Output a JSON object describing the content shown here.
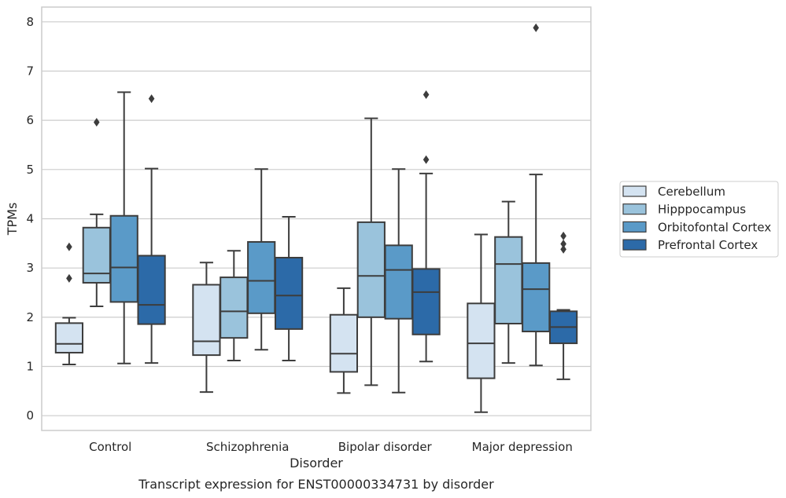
{
  "chart_data": {
    "type": "boxplot",
    "caption": "Transcript expression for ENST00000334731 by disorder",
    "xlabel": "Disorder",
    "ylabel": "TPMs",
    "ylim": [
      -0.3,
      8.3
    ],
    "yticks": [
      0,
      1,
      2,
      3,
      4,
      5,
      6,
      7,
      8
    ],
    "grid": true,
    "legend_position": "right",
    "categories": [
      "Control",
      "Schizophrenia",
      "Bipolar disorder",
      "Major depression"
    ],
    "series": [
      {
        "name": "Cerebellum",
        "color": "#d4e3f1",
        "boxes": [
          {
            "whislo": 1.04,
            "q1": 1.28,
            "med": 1.46,
            "q3": 1.88,
            "whishi": 1.99,
            "fliers": [
              2.79,
              3.43
            ]
          },
          {
            "whislo": 0.48,
            "q1": 1.23,
            "med": 1.51,
            "q3": 2.66,
            "whishi": 3.11,
            "fliers": []
          },
          {
            "whislo": 0.46,
            "q1": 0.89,
            "med": 1.26,
            "q3": 2.05,
            "whishi": 2.59,
            "fliers": []
          },
          {
            "whislo": 0.07,
            "q1": 0.76,
            "med": 1.47,
            "q3": 2.28,
            "whishi": 3.68,
            "fliers": []
          }
        ]
      },
      {
        "name": "Hipppocampus",
        "color": "#9ac3dc",
        "boxes": [
          {
            "whislo": 2.22,
            "q1": 2.7,
            "med": 2.89,
            "q3": 3.82,
            "whishi": 4.09,
            "fliers": [
              5.96
            ]
          },
          {
            "whislo": 1.12,
            "q1": 1.58,
            "med": 2.12,
            "q3": 2.81,
            "whishi": 3.35,
            "fliers": []
          },
          {
            "whislo": 0.62,
            "q1": 2.0,
            "med": 2.84,
            "q3": 3.93,
            "whishi": 6.04,
            "fliers": []
          },
          {
            "whislo": 1.07,
            "q1": 1.87,
            "med": 3.08,
            "q3": 3.63,
            "whishi": 4.35,
            "fliers": []
          }
        ]
      },
      {
        "name": "Orbitofontal Cortex",
        "color": "#5a9ac8",
        "boxes": [
          {
            "whislo": 1.06,
            "q1": 2.31,
            "med": 3.01,
            "q3": 4.06,
            "whishi": 6.57,
            "fliers": []
          },
          {
            "whislo": 1.34,
            "q1": 2.08,
            "med": 2.74,
            "q3": 3.53,
            "whishi": 5.01,
            "fliers": []
          },
          {
            "whislo": 0.47,
            "q1": 1.97,
            "med": 2.96,
            "q3": 3.46,
            "whishi": 5.01,
            "fliers": []
          },
          {
            "whislo": 1.02,
            "q1": 1.71,
            "med": 2.57,
            "q3": 3.1,
            "whishi": 4.9,
            "fliers": [
              7.88
            ]
          }
        ]
      },
      {
        "name": "Prefrontal Cortex",
        "color": "#2c6aa8",
        "boxes": [
          {
            "whislo": 1.07,
            "q1": 1.86,
            "med": 2.25,
            "q3": 3.25,
            "whishi": 5.02,
            "fliers": [
              6.44
            ]
          },
          {
            "whislo": 1.12,
            "q1": 1.76,
            "med": 2.44,
            "q3": 3.21,
            "whishi": 4.04,
            "fliers": []
          },
          {
            "whislo": 1.1,
            "q1": 1.65,
            "med": 2.51,
            "q3": 2.98,
            "whishi": 4.92,
            "fliers": [
              5.2,
              6.52
            ]
          },
          {
            "whislo": 0.74,
            "q1": 1.47,
            "med": 1.8,
            "q3": 2.12,
            "whishi": 2.15,
            "fliers": [
              3.38,
              3.49,
              3.65
            ]
          }
        ]
      }
    ]
  }
}
